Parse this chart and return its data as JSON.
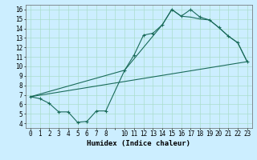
{
  "xlabel": "Humidex (Indice chaleur)",
  "bg_color": "#cceeff",
  "grid_color": "#aaddcc",
  "line_color": "#1a6b5a",
  "xlim": [
    -0.5,
    23.5
  ],
  "ylim": [
    3.5,
    16.5
  ],
  "xticks": [
    0,
    1,
    2,
    3,
    4,
    5,
    6,
    7,
    8,
    10,
    11,
    12,
    13,
    14,
    15,
    16,
    17,
    18,
    19,
    20,
    21,
    22,
    23
  ],
  "yticks": [
    4,
    5,
    6,
    7,
    8,
    9,
    10,
    11,
    12,
    13,
    14,
    15,
    16
  ],
  "series1_x": [
    0,
    1,
    2,
    3,
    4,
    5,
    6,
    7,
    8,
    10,
    11,
    12,
    13,
    14,
    15,
    16,
    17,
    18,
    19,
    20,
    21,
    22,
    23
  ],
  "series1_y": [
    6.8,
    6.6,
    6.1,
    5.2,
    5.2,
    4.1,
    4.2,
    5.3,
    5.3,
    9.6,
    11.2,
    13.3,
    13.5,
    14.4,
    16.0,
    15.3,
    16.0,
    15.2,
    14.9,
    14.1,
    13.2,
    12.5,
    10.5
  ],
  "series2_x": [
    0,
    23
  ],
  "series2_y": [
    6.8,
    10.5
  ],
  "series3_x": [
    0,
    10,
    14,
    15,
    16,
    17,
    18,
    19,
    20,
    21,
    22,
    23
  ],
  "series3_y": [
    6.8,
    9.6,
    14.4,
    16.0,
    15.3,
    15.2,
    15.0,
    14.9,
    14.1,
    13.2,
    12.5,
    10.5
  ],
  "tick_fontsize": 5.5,
  "xlabel_fontsize": 6.5
}
